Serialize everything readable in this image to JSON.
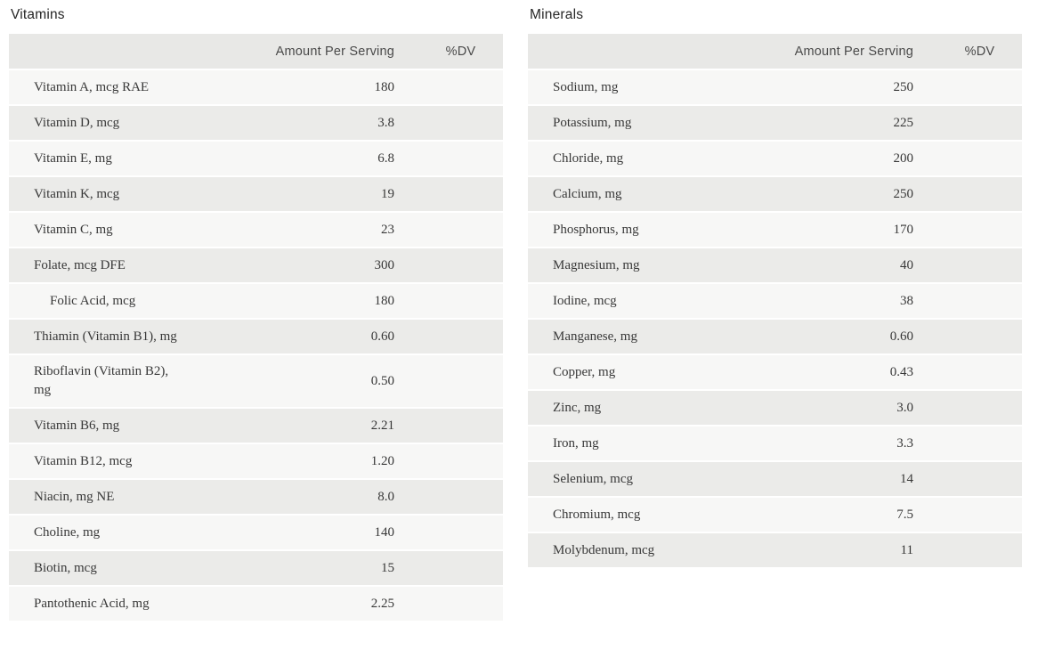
{
  "colors": {
    "header_bg": "#e8e8e6",
    "row_light": "#f7f7f6",
    "row_dark": "#ebebe9",
    "row_gap": "#ffffff",
    "title_text": "#262626",
    "header_text": "#4a4a4a",
    "body_text": "#383838"
  },
  "tables": [
    {
      "title": "Vitamins",
      "columns": {
        "name": "",
        "amount": "Amount Per Serving",
        "dv": "%DV"
      },
      "rows": [
        {
          "label": "Vitamin A, mcg RAE",
          "amount": "180",
          "dv": "",
          "indent": false
        },
        {
          "label": "Vitamin D, mcg",
          "amount": "3.8",
          "dv": "",
          "indent": false
        },
        {
          "label": "Vitamin E, mg",
          "amount": "6.8",
          "dv": "",
          "indent": false
        },
        {
          "label": "Vitamin K, mcg",
          "amount": "19",
          "dv": "",
          "indent": false
        },
        {
          "label": "Vitamin C, mg",
          "amount": "23",
          "dv": "",
          "indent": false
        },
        {
          "label": "Folate, mcg DFE",
          "amount": "300",
          "dv": "",
          "indent": false
        },
        {
          "label": "Folic Acid, mcg",
          "amount": "180",
          "dv": "",
          "indent": true
        },
        {
          "label": "Thiamin (Vitamin B1), mg",
          "amount": "0.60",
          "dv": "",
          "indent": false
        },
        {
          "label": "Riboflavin (Vitamin B2), mg",
          "amount": "0.50",
          "dv": "",
          "indent": false
        },
        {
          "label": "Vitamin B6, mg",
          "amount": "2.21",
          "dv": "",
          "indent": false
        },
        {
          "label": "Vitamin B12, mcg",
          "amount": "1.20",
          "dv": "",
          "indent": false
        },
        {
          "label": "Niacin, mg NE",
          "amount": "8.0",
          "dv": "",
          "indent": false
        },
        {
          "label": "Choline, mg",
          "amount": "140",
          "dv": "",
          "indent": false
        },
        {
          "label": "Biotin, mcg",
          "amount": "15",
          "dv": "",
          "indent": false
        },
        {
          "label": "Pantothenic Acid, mg",
          "amount": "2.25",
          "dv": "",
          "indent": false
        }
      ]
    },
    {
      "title": "Minerals",
      "columns": {
        "name": "",
        "amount": "Amount Per Serving",
        "dv": "%DV"
      },
      "rows": [
        {
          "label": "Sodium, mg",
          "amount": "250",
          "dv": "",
          "indent": false
        },
        {
          "label": "Potassium, mg",
          "amount": "225",
          "dv": "",
          "indent": false
        },
        {
          "label": "Chloride, mg",
          "amount": "200",
          "dv": "",
          "indent": false
        },
        {
          "label": "Calcium, mg",
          "amount": "250",
          "dv": "",
          "indent": false
        },
        {
          "label": "Phosphorus, mg",
          "amount": "170",
          "dv": "",
          "indent": false
        },
        {
          "label": "Magnesium, mg",
          "amount": "40",
          "dv": "",
          "indent": false
        },
        {
          "label": "Iodine, mcg",
          "amount": "38",
          "dv": "",
          "indent": false
        },
        {
          "label": "Manganese, mg",
          "amount": "0.60",
          "dv": "",
          "indent": false
        },
        {
          "label": "Copper, mg",
          "amount": "0.43",
          "dv": "",
          "indent": false
        },
        {
          "label": "Zinc, mg",
          "amount": "3.0",
          "dv": "",
          "indent": false
        },
        {
          "label": "Iron, mg",
          "amount": "3.3",
          "dv": "",
          "indent": false
        },
        {
          "label": "Selenium, mcg",
          "amount": "14",
          "dv": "",
          "indent": false
        },
        {
          "label": "Chromium, mcg",
          "amount": "7.5",
          "dv": "",
          "indent": false
        },
        {
          "label": "Molybdenum, mcg",
          "amount": "11",
          "dv": "",
          "indent": false
        }
      ]
    }
  ]
}
